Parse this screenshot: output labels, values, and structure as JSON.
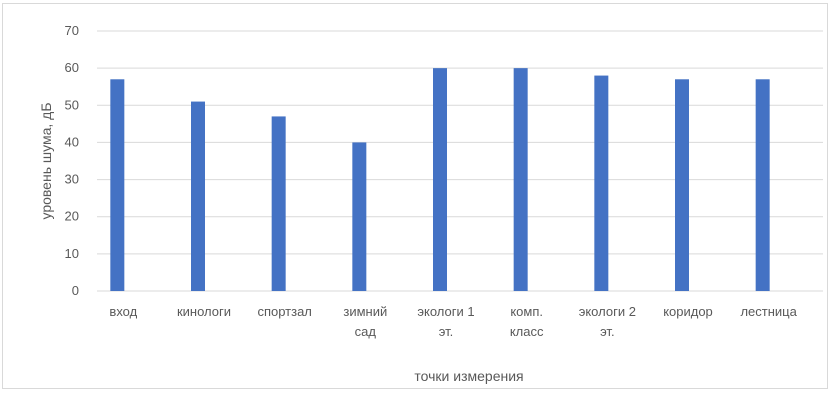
{
  "chart_data": {
    "type": "bar",
    "categories": [
      [
        "вход"
      ],
      [
        "кинологи"
      ],
      [
        "спортзал"
      ],
      [
        "зимний",
        "сад"
      ],
      [
        "экологи 1",
        "эт."
      ],
      [
        "комп.",
        "класс"
      ],
      [
        "экологи 2",
        "эт."
      ],
      [
        "коридор"
      ],
      [
        "лестница"
      ]
    ],
    "values": [
      57,
      51,
      47,
      40,
      60,
      60,
      58,
      57,
      57
    ],
    "title": "",
    "xlabel": "точки измерения",
    "ylabel": "уровень шума, дБ",
    "ylim": [
      0,
      70
    ],
    "yticks": [
      0,
      10,
      20,
      30,
      40,
      50,
      60,
      70
    ],
    "grid": true,
    "legend": "none",
    "colors": {
      "bar": "#4472c4",
      "grid": "#d9d9d9",
      "text": "#595959"
    }
  }
}
